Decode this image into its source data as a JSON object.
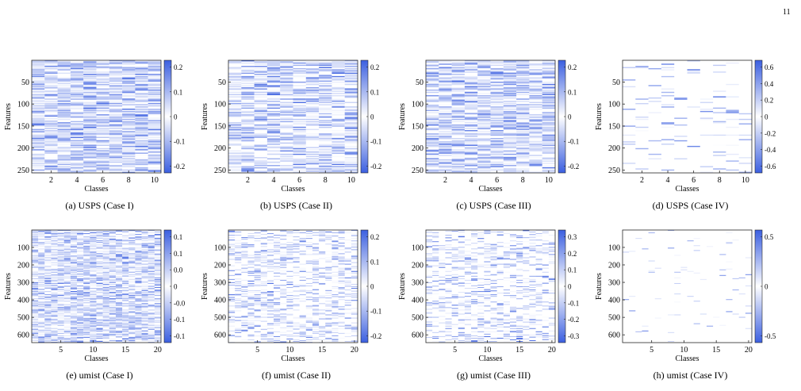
{
  "page": {
    "number": "11"
  },
  "colorbar_gradient": {
    "neg": "#3b5fe0",
    "mid": "#ffffff",
    "pos": "#3b5fe0"
  },
  "chart_data": [
    {
      "type": "heatmap",
      "caption": "(a) USPS (Case I)",
      "xlabel": "Classes",
      "ylabel": "Features",
      "x_range": [
        0.5,
        10.5
      ],
      "y_range": [
        0.5,
        256.5
      ],
      "xticks": [
        2,
        4,
        6,
        8,
        10
      ],
      "yticks": [
        50,
        100,
        150,
        200,
        250
      ],
      "colorbar": {
        "ticks": [
          "0.2",
          "0.1",
          "0",
          "-0.1",
          "-0.2"
        ],
        "range": [
          -0.25,
          0.25
        ]
      },
      "n_classes": 10,
      "n_features": 256,
      "seed": 11,
      "density": 0.85,
      "max_abs": 0.22
    },
    {
      "type": "heatmap",
      "caption": "(b) USPS (Case II)",
      "xlabel": "Classes",
      "ylabel": "Features",
      "x_range": [
        0.5,
        10.5
      ],
      "y_range": [
        0.5,
        256.5
      ],
      "xticks": [
        2,
        4,
        6,
        8,
        10
      ],
      "yticks": [
        50,
        100,
        150,
        200,
        250
      ],
      "colorbar": {
        "ticks": [
          "0.2",
          "0.1",
          "0",
          "-0.1",
          "-0.2"
        ],
        "range": [
          -0.25,
          0.25
        ]
      },
      "n_classes": 10,
      "n_features": 256,
      "seed": 23,
      "density": 0.7,
      "max_abs": 0.22
    },
    {
      "type": "heatmap",
      "caption": "(c) USPS (Case III)",
      "xlabel": "Classes",
      "ylabel": "Features",
      "x_range": [
        0.5,
        10.5
      ],
      "y_range": [
        0.5,
        256.5
      ],
      "xticks": [
        2,
        4,
        6,
        8,
        10
      ],
      "yticks": [
        50,
        100,
        150,
        200,
        250
      ],
      "colorbar": {
        "ticks": [
          "0.2",
          "0.1",
          "0",
          "-0.1",
          "-0.2"
        ],
        "range": [
          -0.25,
          0.25
        ]
      },
      "n_classes": 10,
      "n_features": 256,
      "seed": 37,
      "density": 0.8,
      "max_abs": 0.22
    },
    {
      "type": "heatmap",
      "caption": "(d) USPS (Case IV)",
      "xlabel": "Classes",
      "ylabel": "Features",
      "x_range": [
        0.5,
        10.5
      ],
      "y_range": [
        0.5,
        256.5
      ],
      "xticks": [
        2,
        4,
        6,
        8,
        10
      ],
      "yticks": [
        50,
        100,
        150,
        200,
        250
      ],
      "colorbar": {
        "ticks": [
          "0.6",
          "0.4",
          "0.2",
          "0",
          "-0.2",
          "-0.4",
          "-0.6"
        ],
        "range": [
          -0.7,
          0.7
        ]
      },
      "n_classes": 10,
      "n_features": 256,
      "seed": 41,
      "density": 0.1,
      "max_abs": 0.6
    },
    {
      "type": "heatmap",
      "caption": "(e) umist (Case I)",
      "xlabel": "Classes",
      "ylabel": "Features",
      "x_range": [
        0.5,
        20.5
      ],
      "y_range": [
        0.5,
        644.5
      ],
      "xticks": [
        5,
        10,
        15,
        20
      ],
      "yticks": [
        100,
        200,
        300,
        400,
        500,
        600
      ],
      "colorbar": {
        "ticks": [
          "0.1",
          "0.1",
          "0.0",
          "0",
          "-0.0",
          "-0.1",
          "-0.1"
        ],
        "range": [
          -0.18,
          0.18
        ]
      },
      "n_classes": 20,
      "n_features": 644,
      "seed": 53,
      "density": 0.75,
      "max_abs": 0.15
    },
    {
      "type": "heatmap",
      "caption": "(f) umist (Case II)",
      "xlabel": "Classes",
      "ylabel": "Features",
      "x_range": [
        0.5,
        20.5
      ],
      "y_range": [
        0.5,
        644.5
      ],
      "xticks": [
        5,
        10,
        15,
        20
      ],
      "yticks": [
        100,
        200,
        300,
        400,
        500,
        600
      ],
      "colorbar": {
        "ticks": [
          "0.2",
          "0.1",
          "0",
          "-0.1",
          "-0.2"
        ],
        "range": [
          -0.25,
          0.25
        ]
      },
      "n_classes": 20,
      "n_features": 644,
      "seed": 67,
      "density": 0.35,
      "max_abs": 0.2
    },
    {
      "type": "heatmap",
      "caption": "(g) umist (Case III)",
      "xlabel": "Classes",
      "ylabel": "Features",
      "x_range": [
        0.5,
        20.5
      ],
      "y_range": [
        0.5,
        644.5
      ],
      "xticks": [
        5,
        10,
        15,
        20
      ],
      "yticks": [
        100,
        200,
        300,
        400,
        500,
        600
      ],
      "colorbar": {
        "ticks": [
          "0.3",
          "0.2",
          "0.1",
          "0",
          "-0.1",
          "-0.2",
          "-0.3"
        ],
        "range": [
          -0.33,
          0.33
        ]
      },
      "n_classes": 20,
      "n_features": 644,
      "seed": 79,
      "density": 0.3,
      "max_abs": 0.3
    },
    {
      "type": "heatmap",
      "caption": "(h) umist (Case IV)",
      "xlabel": "Classes",
      "ylabel": "Features",
      "x_range": [
        0.5,
        20.5
      ],
      "y_range": [
        0.5,
        644.5
      ],
      "xticks": [
        5,
        10,
        15,
        20
      ],
      "yticks": [
        100,
        200,
        300,
        400,
        500,
        600
      ],
      "colorbar": {
        "ticks": [
          "0.5",
          "0",
          "-0.5"
        ],
        "range": [
          -1.0,
          1.0
        ]
      },
      "n_classes": 20,
      "n_features": 644,
      "seed": 97,
      "density": 0.03,
      "max_abs": 0.9
    }
  ]
}
